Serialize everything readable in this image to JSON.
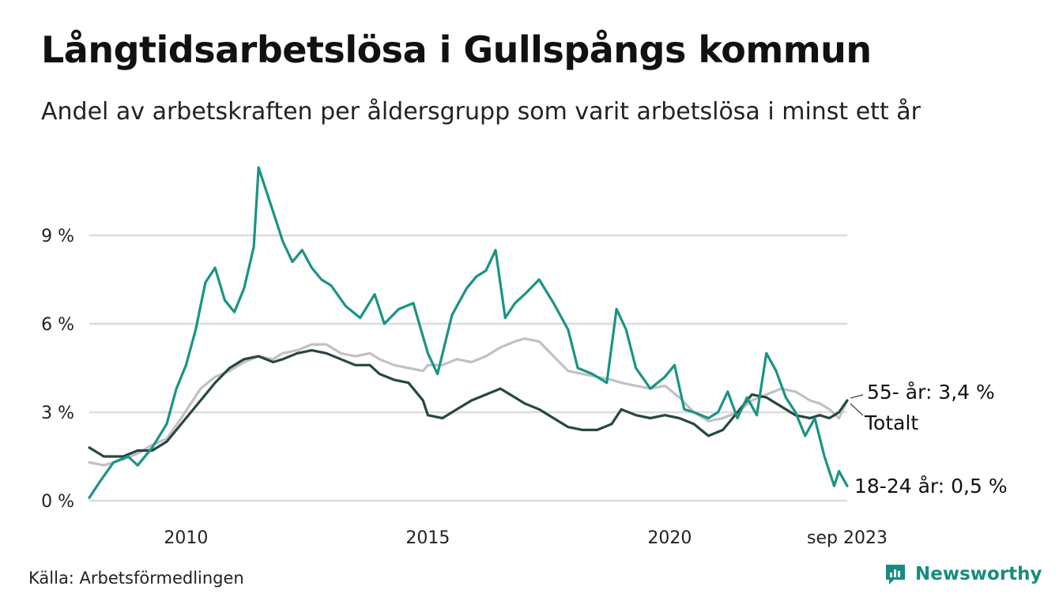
{
  "title": "Långtidsarbetslösa i Gullspångs kommun",
  "subtitle": "Andel av arbetskraften per åldersgrupp som varit arbetslösa i minst ett år",
  "source": "Källa: Arbetsförmedlingen",
  "brand": "Newsworthy",
  "brand_icon": "newsworthy-logo-icon",
  "colors": {
    "age_18_24": "#1b9385",
    "age_55_plus": "#c3bfc9",
    "total": "#27473f",
    "grid": "#dcdcdc",
    "brand": "#178c7e"
  },
  "chart_data": {
    "type": "line",
    "title": "Långtidsarbetslösa i Gullspångs kommun",
    "xlabel": "",
    "ylabel": "",
    "xlim": [
      2008.0,
      2023.67
    ],
    "ylim": [
      0,
      9
    ],
    "x_ticks": [
      {
        "value": 2010,
        "label": "2010"
      },
      {
        "value": 2015,
        "label": "2015"
      },
      {
        "value": 2020,
        "label": "2020"
      },
      {
        "value": 2023.67,
        "label": "sep 2023"
      }
    ],
    "y_ticks": [
      {
        "value": 0,
        "label": "0 %"
      },
      {
        "value": 3,
        "label": "3 %"
      },
      {
        "value": 6,
        "label": "6 %"
      },
      {
        "value": 9,
        "label": "9 %"
      }
    ],
    "grid": true,
    "series": [
      {
        "name": "55- år",
        "end_label": "55- år: 3,4 %",
        "color_key": "age_55_plus",
        "points": [
          [
            2008.0,
            1.3
          ],
          [
            2008.3,
            1.2
          ],
          [
            2008.7,
            1.4
          ],
          [
            2009.0,
            1.6
          ],
          [
            2009.3,
            1.9
          ],
          [
            2009.6,
            2.1
          ],
          [
            2009.9,
            2.8
          ],
          [
            2010.3,
            3.8
          ],
          [
            2010.6,
            4.2
          ],
          [
            2010.9,
            4.4
          ],
          [
            2011.2,
            4.7
          ],
          [
            2011.5,
            4.9
          ],
          [
            2011.8,
            4.8
          ],
          [
            2012.0,
            5.0
          ],
          [
            2012.3,
            5.1
          ],
          [
            2012.6,
            5.3
          ],
          [
            2012.9,
            5.3
          ],
          [
            2013.2,
            5.0
          ],
          [
            2013.5,
            4.9
          ],
          [
            2013.8,
            5.0
          ],
          [
            2014.0,
            4.8
          ],
          [
            2014.3,
            4.6
          ],
          [
            2014.6,
            4.5
          ],
          [
            2014.9,
            4.4
          ],
          [
            2015.0,
            4.6
          ],
          [
            2015.3,
            4.6
          ],
          [
            2015.6,
            4.8
          ],
          [
            2015.9,
            4.7
          ],
          [
            2016.2,
            4.9
          ],
          [
            2016.5,
            5.2
          ],
          [
            2016.8,
            5.4
          ],
          [
            2017.0,
            5.5
          ],
          [
            2017.3,
            5.4
          ],
          [
            2017.6,
            4.9
          ],
          [
            2017.9,
            4.4
          ],
          [
            2018.2,
            4.3
          ],
          [
            2018.5,
            4.2
          ],
          [
            2018.8,
            4.1
          ],
          [
            2019.0,
            4.0
          ],
          [
            2019.3,
            3.9
          ],
          [
            2019.6,
            3.8
          ],
          [
            2019.9,
            3.9
          ],
          [
            2020.2,
            3.5
          ],
          [
            2020.5,
            3.0
          ],
          [
            2020.8,
            2.7
          ],
          [
            2021.1,
            2.8
          ],
          [
            2021.4,
            3.0
          ],
          [
            2021.7,
            3.4
          ],
          [
            2022.0,
            3.6
          ],
          [
            2022.3,
            3.8
          ],
          [
            2022.6,
            3.7
          ],
          [
            2022.9,
            3.4
          ],
          [
            2023.1,
            3.3
          ],
          [
            2023.3,
            3.1
          ],
          [
            2023.5,
            2.8
          ],
          [
            2023.67,
            3.4
          ]
        ]
      },
      {
        "name": "Totalt",
        "end_label": "Totalt",
        "color_key": "total",
        "points": [
          [
            2008.0,
            1.8
          ],
          [
            2008.3,
            1.5
          ],
          [
            2008.7,
            1.5
          ],
          [
            2009.0,
            1.7
          ],
          [
            2009.3,
            1.7
          ],
          [
            2009.6,
            2.0
          ],
          [
            2009.9,
            2.6
          ],
          [
            2010.3,
            3.4
          ],
          [
            2010.6,
            4.0
          ],
          [
            2010.9,
            4.5
          ],
          [
            2011.2,
            4.8
          ],
          [
            2011.5,
            4.9
          ],
          [
            2011.8,
            4.7
          ],
          [
            2012.0,
            4.8
          ],
          [
            2012.3,
            5.0
          ],
          [
            2012.6,
            5.1
          ],
          [
            2012.9,
            5.0
          ],
          [
            2013.2,
            4.8
          ],
          [
            2013.5,
            4.6
          ],
          [
            2013.8,
            4.6
          ],
          [
            2014.0,
            4.3
          ],
          [
            2014.3,
            4.1
          ],
          [
            2014.6,
            4.0
          ],
          [
            2014.9,
            3.4
          ],
          [
            2015.0,
            2.9
          ],
          [
            2015.3,
            2.8
          ],
          [
            2015.6,
            3.1
          ],
          [
            2015.9,
            3.4
          ],
          [
            2016.2,
            3.6
          ],
          [
            2016.5,
            3.8
          ],
          [
            2016.8,
            3.5
          ],
          [
            2017.0,
            3.3
          ],
          [
            2017.3,
            3.1
          ],
          [
            2017.6,
            2.8
          ],
          [
            2017.9,
            2.5
          ],
          [
            2018.2,
            2.4
          ],
          [
            2018.5,
            2.4
          ],
          [
            2018.8,
            2.6
          ],
          [
            2019.0,
            3.1
          ],
          [
            2019.3,
            2.9
          ],
          [
            2019.6,
            2.8
          ],
          [
            2019.9,
            2.9
          ],
          [
            2020.2,
            2.8
          ],
          [
            2020.5,
            2.6
          ],
          [
            2020.8,
            2.2
          ],
          [
            2021.1,
            2.4
          ],
          [
            2021.4,
            3.0
          ],
          [
            2021.7,
            3.6
          ],
          [
            2022.0,
            3.5
          ],
          [
            2022.3,
            3.2
          ],
          [
            2022.6,
            2.9
          ],
          [
            2022.9,
            2.8
          ],
          [
            2023.1,
            2.9
          ],
          [
            2023.3,
            2.8
          ],
          [
            2023.5,
            3.0
          ],
          [
            2023.67,
            3.4
          ]
        ]
      },
      {
        "name": "18-24 år",
        "end_label": "18-24 år: 0,5 %",
        "color_key": "age_18_24",
        "points": [
          [
            2008.0,
            0.1
          ],
          [
            2008.2,
            0.6
          ],
          [
            2008.5,
            1.3
          ],
          [
            2008.8,
            1.5
          ],
          [
            2009.0,
            1.2
          ],
          [
            2009.3,
            1.8
          ],
          [
            2009.6,
            2.6
          ],
          [
            2009.8,
            3.8
          ],
          [
            2010.0,
            4.6
          ],
          [
            2010.2,
            5.8
          ],
          [
            2010.4,
            7.4
          ],
          [
            2010.6,
            7.9
          ],
          [
            2010.8,
            6.8
          ],
          [
            2011.0,
            6.4
          ],
          [
            2011.2,
            7.2
          ],
          [
            2011.4,
            8.6
          ],
          [
            2011.5,
            11.3
          ],
          [
            2011.6,
            10.8
          ],
          [
            2011.8,
            9.8
          ],
          [
            2012.0,
            8.8
          ],
          [
            2012.2,
            8.1
          ],
          [
            2012.4,
            8.5
          ],
          [
            2012.6,
            7.9
          ],
          [
            2012.8,
            7.5
          ],
          [
            2013.0,
            7.3
          ],
          [
            2013.3,
            6.6
          ],
          [
            2013.6,
            6.2
          ],
          [
            2013.9,
            7.0
          ],
          [
            2014.1,
            6.0
          ],
          [
            2014.4,
            6.5
          ],
          [
            2014.7,
            6.7
          ],
          [
            2015.0,
            5.0
          ],
          [
            2015.2,
            4.3
          ],
          [
            2015.5,
            6.3
          ],
          [
            2015.8,
            7.2
          ],
          [
            2016.0,
            7.6
          ],
          [
            2016.2,
            7.8
          ],
          [
            2016.4,
            8.5
          ],
          [
            2016.6,
            6.2
          ],
          [
            2016.8,
            6.7
          ],
          [
            2017.0,
            7.0
          ],
          [
            2017.3,
            7.5
          ],
          [
            2017.6,
            6.7
          ],
          [
            2017.9,
            5.8
          ],
          [
            2018.1,
            4.5
          ],
          [
            2018.4,
            4.3
          ],
          [
            2018.7,
            4.0
          ],
          [
            2018.9,
            6.5
          ],
          [
            2019.1,
            5.8
          ],
          [
            2019.3,
            4.5
          ],
          [
            2019.6,
            3.8
          ],
          [
            2019.9,
            4.2
          ],
          [
            2020.1,
            4.6
          ],
          [
            2020.3,
            3.1
          ],
          [
            2020.5,
            3.0
          ],
          [
            2020.8,
            2.8
          ],
          [
            2021.0,
            3.0
          ],
          [
            2021.2,
            3.7
          ],
          [
            2021.4,
            2.8
          ],
          [
            2021.6,
            3.5
          ],
          [
            2021.8,
            2.9
          ],
          [
            2022.0,
            5.0
          ],
          [
            2022.2,
            4.4
          ],
          [
            2022.4,
            3.5
          ],
          [
            2022.6,
            3.0
          ],
          [
            2022.8,
            2.2
          ],
          [
            2023.0,
            2.8
          ],
          [
            2023.2,
            1.5
          ],
          [
            2023.4,
            0.5
          ],
          [
            2023.5,
            1.0
          ],
          [
            2023.67,
            0.5
          ]
        ]
      }
    ]
  }
}
